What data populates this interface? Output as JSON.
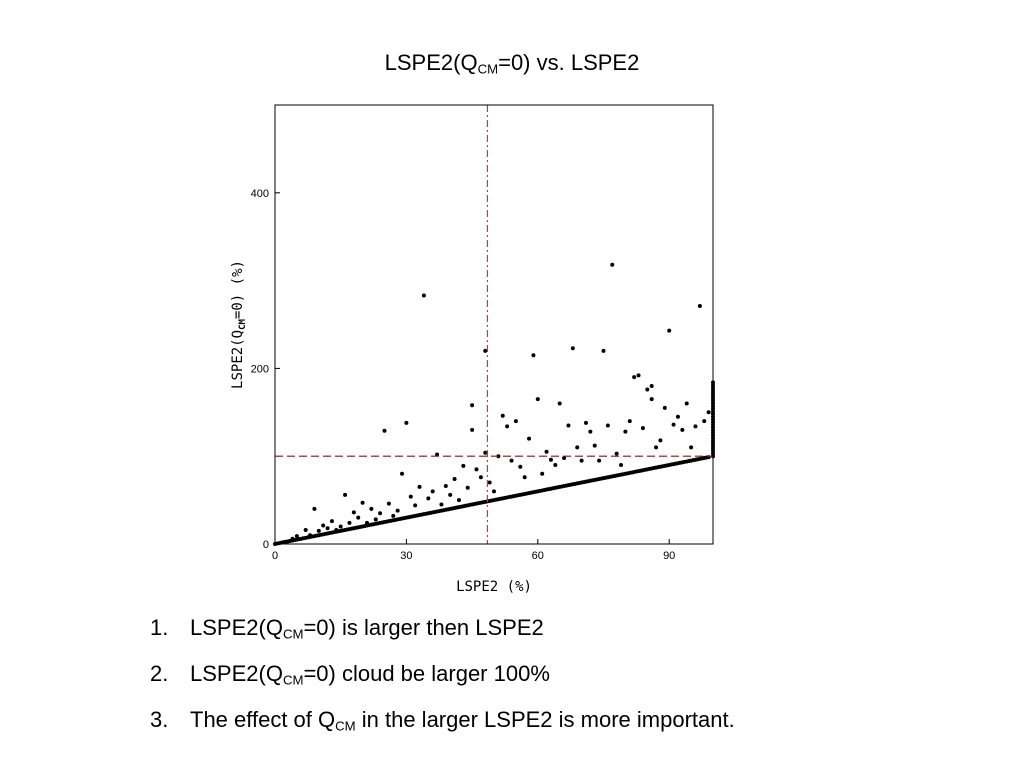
{
  "title": {
    "prefix": "LSPE2(Q",
    "sub": "CM",
    "suffix": "=0) vs. LSPE2"
  },
  "notes": [
    {
      "number": "1.",
      "prefix": "LSPE2(Q",
      "sub": "CM",
      "suffix": "=0) is larger then LSPE2"
    },
    {
      "number": "2.",
      "prefix": "LSPE2(Q",
      "sub": "CM",
      "suffix": "=0) cloud be larger 100%"
    },
    {
      "number": "3.",
      "prefix": "The effect of Q",
      "sub": "CM",
      "suffix": " in the larger LSPE2 is more important."
    }
  ],
  "chart_data": {
    "type": "scatter",
    "xlabel": "LSPE2 (%)",
    "ylabel": {
      "prefix": "LSPE2(Q",
      "sub": "CM",
      "suffix": "=0) (%)"
    },
    "xlim": [
      0,
      100
    ],
    "ylim": [
      0,
      500
    ],
    "xticks": [
      0,
      30,
      60,
      90
    ],
    "yticks": [
      0,
      200,
      400
    ],
    "grid": false,
    "point_color": "#000000",
    "reference_lines": [
      {
        "orientation": "vertical",
        "value": 48.5,
        "style": "dash-dot",
        "color": "#e0302a"
      },
      {
        "orientation": "horizontal",
        "value": 100,
        "style": "dashed",
        "color": "#7a1a1a"
      }
    ],
    "diagonal_band": {
      "from": 0,
      "to": 99,
      "step": 0.5,
      "relation": "y = x"
    },
    "boundary_cluster": {
      "x": 100,
      "y_from": 100,
      "y_to": 184,
      "step": 3
    },
    "points": [
      [
        2,
        2
      ],
      [
        4,
        6
      ],
      [
        5,
        9
      ],
      [
        7,
        16
      ],
      [
        8,
        10
      ],
      [
        9,
        40
      ],
      [
        10,
        15
      ],
      [
        11,
        21
      ],
      [
        12,
        18
      ],
      [
        13,
        26
      ],
      [
        14,
        16
      ],
      [
        15,
        20
      ],
      [
        16,
        56
      ],
      [
        17,
        24
      ],
      [
        18,
        36
      ],
      [
        19,
        30
      ],
      [
        20,
        47
      ],
      [
        21,
        24
      ],
      [
        22,
        40
      ],
      [
        23,
        28
      ],
      [
        24,
        35
      ],
      [
        25,
        129
      ],
      [
        26,
        46
      ],
      [
        27,
        32
      ],
      [
        28,
        38
      ],
      [
        29,
        80
      ],
      [
        30,
        138
      ],
      [
        31,
        54
      ],
      [
        32,
        44
      ],
      [
        33,
        65
      ],
      [
        34,
        283
      ],
      [
        35,
        52
      ],
      [
        36,
        60
      ],
      [
        37,
        102
      ],
      [
        38,
        45
      ],
      [
        39,
        66
      ],
      [
        40,
        56
      ],
      [
        41,
        74
      ],
      [
        42,
        50
      ],
      [
        43,
        89
      ],
      [
        44,
        64
      ],
      [
        45,
        158
      ],
      [
        45,
        130
      ],
      [
        46,
        85
      ],
      [
        47,
        76
      ],
      [
        48,
        220
      ],
      [
        48,
        104
      ],
      [
        49,
        70
      ],
      [
        50,
        60
      ],
      [
        51,
        100
      ],
      [
        52,
        146
      ],
      [
        53,
        134
      ],
      [
        54,
        95
      ],
      [
        55,
        140
      ],
      [
        56,
        88
      ],
      [
        57,
        76
      ],
      [
        58,
        120
      ],
      [
        59,
        215
      ],
      [
        60,
        165
      ],
      [
        61,
        80
      ],
      [
        62,
        105
      ],
      [
        63,
        96
      ],
      [
        64,
        90
      ],
      [
        65,
        160
      ],
      [
        66,
        98
      ],
      [
        67,
        135
      ],
      [
        68,
        223
      ],
      [
        69,
        110
      ],
      [
        70,
        95
      ],
      [
        71,
        138
      ],
      [
        72,
        128
      ],
      [
        73,
        112
      ],
      [
        74,
        95
      ],
      [
        75,
        220
      ],
      [
        76,
        135
      ],
      [
        77,
        318
      ],
      [
        78,
        103
      ],
      [
        79,
        90
      ],
      [
        80,
        128
      ],
      [
        81,
        140
      ],
      [
        82,
        190
      ],
      [
        83,
        192
      ],
      [
        84,
        132
      ],
      [
        85,
        176
      ],
      [
        86,
        165
      ],
      [
        86,
        180
      ],
      [
        87,
        110
      ],
      [
        88,
        118
      ],
      [
        89,
        155
      ],
      [
        90,
        243
      ],
      [
        91,
        136
      ],
      [
        92,
        145
      ],
      [
        93,
        130
      ],
      [
        94,
        160
      ],
      [
        95,
        110
      ],
      [
        96,
        134
      ],
      [
        97,
        271
      ],
      [
        98,
        140
      ],
      [
        99,
        150
      ]
    ]
  }
}
